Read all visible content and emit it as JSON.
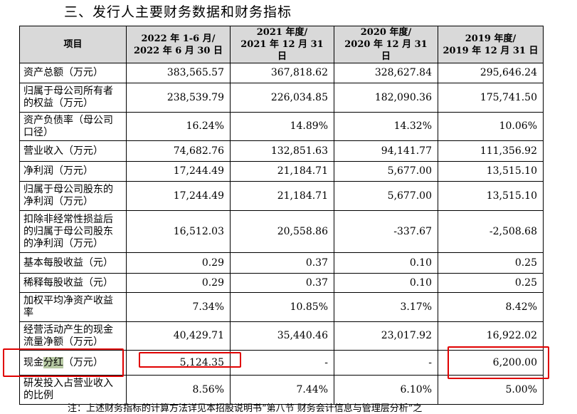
{
  "title": "三、发行人主要财务数据和财务指标",
  "header": {
    "item": "项目",
    "cols": [
      {
        "line1": "2022 年 1-6 月/",
        "line2": "2022 年 6 月 30 日"
      },
      {
        "line1": "2021 年度/",
        "line2": "2021 年 12 月 31 日"
      },
      {
        "line1": "2020 年度/",
        "line2": "2020 年 12 月 31 日"
      },
      {
        "line1": "2019 年度/",
        "line2": "2019 年 12 月 31 日"
      }
    ]
  },
  "rows": [
    {
      "label": "资产总额（万元）",
      "values": [
        "383,565.57",
        "367,818.62",
        "328,627.84",
        "295,646.24"
      ]
    },
    {
      "label": "归属于母公司所有者的权益（万元）",
      "values": [
        "238,539.79",
        "226,034.85",
        "182,090.36",
        "175,741.50"
      ]
    },
    {
      "label": "资产负债率（母公司口径）",
      "values": [
        "16.24%",
        "14.89%",
        "14.32%",
        "10.06%"
      ]
    },
    {
      "label": "营业收入（万元）",
      "values": [
        "74,682.76",
        "132,851.63",
        "94,141.77",
        "111,356.92"
      ]
    },
    {
      "label": "净利润（万元）",
      "values": [
        "17,244.49",
        "21,184.71",
        "5,677.00",
        "13,515.10"
      ]
    },
    {
      "label": "归属于母公司股东的净利润（万元）",
      "values": [
        "17,244.49",
        "21,184.71",
        "5,677.00",
        "13,515.10"
      ]
    },
    {
      "label": "扣除非经常性损益后的归属于母公司股东的净利润（万元）",
      "values": [
        "16,512.03",
        "20,558.86",
        "-337.67",
        "-2,508.68"
      ]
    },
    {
      "label": "基本每股收益（元）",
      "values": [
        "0.29",
        "0.37",
        "0.10",
        "0.25"
      ]
    },
    {
      "label": "稀释每股收益（元）",
      "values": [
        "0.29",
        "0.37",
        "0.10",
        "0.25"
      ]
    },
    {
      "label": "加权平均净资产收益率",
      "values": [
        "7.34%",
        "10.85%",
        "3.17%",
        "8.42%"
      ]
    },
    {
      "label": "经营活动产生的现金流量净额（万元）",
      "values": [
        "40,429.71",
        "35,440.46",
        "23,017.92",
        "16,922.02"
      ]
    },
    {
      "label_pre": "现金",
      "label_hl": "分红",
      "label_post": "（万元）",
      "values": [
        "5,124.35",
        "-",
        "-",
        "6,200.00"
      ]
    },
    {
      "label": "研发投入占营业收入的比例",
      "values": [
        "8.56%",
        "7.44%",
        "6.10%",
        "5.00%"
      ]
    }
  ],
  "footnote": "注：上述财务指标的计算方法详见本招股说明书“第八节 财务会计信息与管理层分析”之",
  "colors": {
    "header_bg": "#d9d9d9",
    "highlight": "#b7c9a4",
    "annotation": "#e00000"
  }
}
